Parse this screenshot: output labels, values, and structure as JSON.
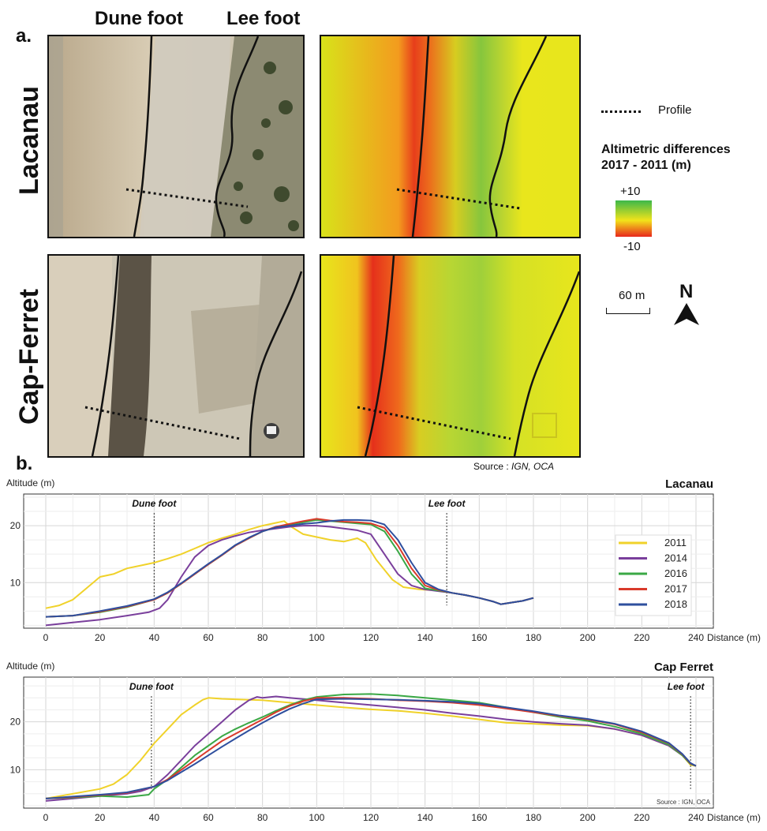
{
  "figure": {
    "panel_a_label": "a.",
    "panel_b_label": "b.",
    "col_dune_foot": "Dune foot",
    "col_lee_foot": "Lee foot",
    "row_lacanau": "Lacanau",
    "row_cap_ferret": "Cap-Ferret",
    "source_prefix": "Source :",
    "source_names": "IGN, OCA"
  },
  "legend": {
    "profile_label": "Profile",
    "title_line1": "Altimetric differences",
    "title_line2": "2017 - 2011 (m)",
    "max_label": "+10",
    "min_label": "-10",
    "scale_label": "60 m",
    "north_label": "N",
    "colors": {
      "high": "#3cb84a",
      "mid": "#f2e31a",
      "low": "#e8271c"
    }
  },
  "chart_data": [
    {
      "type": "line",
      "title": "Lacanau",
      "ylabel": "Altitude (m)",
      "xlabel": "Distance (m)",
      "xlim": [
        0,
        240
      ],
      "ylim": [
        2,
        25
      ],
      "xticks": [
        0,
        20,
        40,
        60,
        80,
        100,
        120,
        140,
        160,
        180,
        200,
        220,
        240
      ],
      "yticks": [
        10,
        20
      ],
      "grid": true,
      "legend_position": "right",
      "annotations": [
        {
          "label": "Dune foot",
          "x": 40
        },
        {
          "label": "Lee foot",
          "x": 148
        }
      ],
      "series": [
        {
          "name": "2011",
          "color": "#f0d22a",
          "x": [
            0,
            5,
            10,
            15,
            20,
            25,
            30,
            35,
            40,
            45,
            50,
            55,
            60,
            65,
            70,
            75,
            80,
            85,
            88,
            90,
            95,
            100,
            105,
            110,
            115,
            118,
            122,
            128,
            132,
            138,
            145,
            150,
            155,
            160,
            165,
            168,
            172,
            176,
            180
          ],
          "y": [
            5.5,
            6,
            7,
            9,
            11,
            11.5,
            12.5,
            13,
            13.5,
            14.2,
            15,
            16,
            17,
            17.8,
            18.5,
            19.3,
            20,
            20.5,
            20.8,
            20,
            18.5,
            18,
            17.5,
            17.2,
            17.8,
            17,
            14,
            10.5,
            9.2,
            8.8,
            8.6,
            8.2,
            7.8,
            7.3,
            6.7,
            6.2,
            6.5,
            6.8,
            7.3
          ]
        },
        {
          "name": "2014",
          "color": "#7a3f9c",
          "x": [
            0,
            10,
            20,
            30,
            38,
            42,
            45,
            50,
            55,
            60,
            65,
            70,
            75,
            80,
            85,
            90,
            95,
            100,
            105,
            110,
            115,
            120,
            125,
            130,
            135,
            140,
            145,
            150,
            155,
            160,
            165,
            168,
            172,
            176,
            180
          ],
          "y": [
            2.5,
            3,
            3.5,
            4.2,
            4.8,
            5.5,
            7,
            11,
            14.5,
            16.5,
            17.5,
            18.2,
            18.8,
            19.2,
            19.5,
            19.8,
            20,
            20,
            19.8,
            19.5,
            19.2,
            18.5,
            15,
            11.5,
            9.5,
            8.8,
            8.5,
            8.2,
            7.8,
            7.3,
            6.7,
            6.2,
            6.5,
            6.8,
            7.3
          ]
        },
        {
          "name": "2016",
          "color": "#3aa845",
          "x": [
            0,
            10,
            20,
            30,
            40,
            45,
            50,
            55,
            60,
            65,
            70,
            75,
            80,
            85,
            90,
            95,
            100,
            105,
            110,
            115,
            120,
            125,
            130,
            135,
            140,
            145,
            150,
            155,
            160,
            165,
            168,
            172,
            176,
            180
          ],
          "y": [
            4,
            4.2,
            4.8,
            5.7,
            7,
            8.2,
            9.8,
            11.5,
            13.2,
            14.8,
            16.5,
            17.8,
            19,
            19.8,
            20.2,
            20.6,
            21,
            20.8,
            20.6,
            20.4,
            20.2,
            19,
            15.5,
            11.5,
            9,
            8.6,
            8.2,
            7.8,
            7.3,
            6.7,
            6.2,
            6.5,
            6.8,
            7.3
          ]
        },
        {
          "name": "2017",
          "color": "#d93a2b",
          "x": [
            0,
            10,
            20,
            30,
            40,
            45,
            50,
            55,
            60,
            65,
            70,
            75,
            80,
            85,
            90,
            95,
            100,
            105,
            110,
            115,
            120,
            125,
            130,
            135,
            140,
            145,
            150,
            155,
            160,
            165,
            168,
            172,
            176,
            180
          ],
          "y": [
            4,
            4.2,
            4.9,
            5.8,
            7,
            8.2,
            9.8,
            11.5,
            13.2,
            14.8,
            16.5,
            17.8,
            19,
            19.8,
            20.3,
            20.8,
            21.2,
            20.9,
            20.7,
            20.6,
            20.4,
            19.6,
            16.5,
            12.5,
            9.5,
            8.7,
            8.2,
            7.8,
            7.3,
            6.7,
            6.2,
            6.5,
            6.8,
            7.3
          ]
        },
        {
          "name": "2018",
          "color": "#2e4f9e",
          "x": [
            0,
            10,
            20,
            30,
            40,
            45,
            50,
            55,
            60,
            65,
            70,
            75,
            80,
            85,
            90,
            95,
            100,
            105,
            110,
            115,
            120,
            125,
            130,
            135,
            140,
            145,
            150,
            155,
            160,
            165,
            168,
            172,
            176,
            180
          ],
          "y": [
            4,
            4.2,
            5,
            5.9,
            7.1,
            8.3,
            9.9,
            11.6,
            13.3,
            14.9,
            16.6,
            17.9,
            19,
            19.7,
            20,
            20.3,
            20.5,
            20.8,
            21,
            21,
            20.9,
            20.2,
            17.5,
            13.5,
            10,
            8.8,
            8.2,
            7.8,
            7.3,
            6.7,
            6.2,
            6.5,
            6.8,
            7.3
          ]
        }
      ]
    },
    {
      "type": "line",
      "title": "Cap Ferret",
      "ylabel": "Altitude (m)",
      "xlabel": "Distance (m)",
      "xlim": [
        0,
        240
      ],
      "ylim": [
        2,
        29
      ],
      "xticks": [
        0,
        20,
        40,
        60,
        80,
        100,
        120,
        140,
        160,
        180,
        200,
        220,
        240
      ],
      "yticks": [
        10,
        20
      ],
      "grid": true,
      "source": "Source : IGN, OCA",
      "annotations": [
        {
          "label": "Dune foot",
          "x": 39
        },
        {
          "label": "Lee foot",
          "x": 238
        }
      ],
      "series": [
        {
          "name": "2011",
          "color": "#f0d22a",
          "x": [
            0,
            10,
            20,
            25,
            30,
            35,
            40,
            45,
            50,
            55,
            58,
            60,
            65,
            70,
            80,
            90,
            100,
            110,
            120,
            130,
            140,
            150,
            160,
            170,
            180,
            190,
            200,
            210,
            220,
            230,
            235,
            238,
            240
          ],
          "y": [
            4,
            5,
            6,
            7,
            9,
            12,
            15.5,
            18.5,
            21.5,
            23.5,
            24.6,
            25,
            24.8,
            24.7,
            24.5,
            24,
            23.5,
            23,
            22.6,
            22.3,
            21.8,
            21.2,
            20.5,
            19.8,
            19.6,
            19.3,
            19.2,
            18.5,
            17.2,
            15,
            13,
            11,
            10.8
          ]
        },
        {
          "name": "2014",
          "color": "#7a3f9c",
          "x": [
            0,
            10,
            20,
            30,
            35,
            40,
            45,
            50,
            55,
            60,
            65,
            70,
            75,
            78,
            80,
            85,
            90,
            100,
            110,
            120,
            130,
            140,
            150,
            160,
            170,
            180,
            190,
            200,
            210,
            220,
            230,
            235,
            238,
            240
          ],
          "y": [
            3.5,
            4,
            4.5,
            5,
            5.5,
            6.5,
            9,
            12,
            15,
            17.5,
            20,
            22.5,
            24.5,
            25.2,
            25,
            25.3,
            25,
            24.5,
            24,
            23.5,
            23,
            22.5,
            21.8,
            21.2,
            20.5,
            20,
            19.6,
            19.3,
            18.5,
            17.2,
            15,
            13,
            11.2,
            10.8
          ]
        },
        {
          "name": "2016",
          "color": "#3aa845",
          "x": [
            0,
            10,
            20,
            30,
            38,
            40,
            45,
            50,
            55,
            60,
            65,
            70,
            75,
            80,
            85,
            90,
            95,
            100,
            110,
            120,
            130,
            140,
            150,
            160,
            170,
            180,
            190,
            200,
            210,
            220,
            230,
            235,
            238,
            240
          ],
          "y": [
            4,
            4.2,
            4.5,
            4.3,
            4.8,
            6,
            8,
            10.5,
            13,
            15,
            17,
            18.5,
            19.8,
            21,
            22.3,
            23.5,
            24.5,
            25.2,
            25.7,
            25.8,
            25.5,
            25,
            24.5,
            24,
            23,
            22,
            21,
            20.2,
            19,
            17.5,
            15.2,
            13,
            11.2,
            10.8
          ]
        },
        {
          "name": "2017",
          "color": "#d93a2b",
          "x": [
            0,
            10,
            20,
            30,
            40,
            45,
            50,
            55,
            60,
            65,
            70,
            75,
            80,
            85,
            90,
            95,
            100,
            110,
            120,
            130,
            140,
            150,
            160,
            170,
            180,
            190,
            200,
            210,
            220,
            230,
            235,
            238,
            240
          ],
          "y": [
            4,
            4.3,
            4.7,
            5.2,
            6.5,
            8,
            10,
            12,
            14,
            16,
            17.5,
            19,
            20.5,
            22,
            23.3,
            24.3,
            25,
            25,
            24.8,
            24.5,
            24.3,
            24,
            23.5,
            22.8,
            22,
            21.2,
            20.5,
            19.5,
            17.8,
            15.5,
            13.2,
            11.3,
            10.8
          ]
        },
        {
          "name": "2018",
          "color": "#2e4f9e",
          "x": [
            0,
            10,
            20,
            30,
            40,
            45,
            50,
            55,
            60,
            65,
            70,
            75,
            80,
            85,
            90,
            95,
            100,
            110,
            120,
            130,
            140,
            150,
            160,
            170,
            180,
            190,
            200,
            210,
            220,
            230,
            235,
            238,
            240
          ],
          "y": [
            4,
            4.4,
            4.8,
            5.3,
            6.5,
            7.8,
            9.5,
            11.2,
            13,
            14.8,
            16.5,
            18.2,
            19.8,
            21.3,
            22.7,
            23.8,
            24.7,
            24.8,
            24.7,
            24.6,
            24.4,
            24.2,
            23.8,
            23,
            22.2,
            21.3,
            20.6,
            19.6,
            18,
            15.6,
            13.3,
            11.4,
            10.8
          ]
        }
      ]
    }
  ]
}
